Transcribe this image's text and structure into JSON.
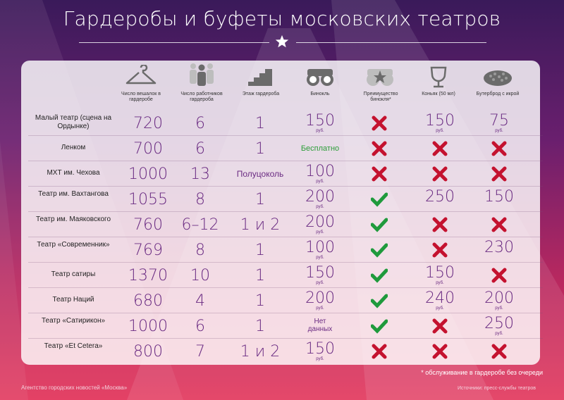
{
  "title": "Гардеробы и буфеты московских театров",
  "columns": [
    {
      "label": "Число вешалок в гардеробе",
      "icon": "hanger-icon"
    },
    {
      "label": "Число работников гардероба",
      "icon": "workers-icon"
    },
    {
      "label": "Этаж гардероба",
      "icon": "stairs-icon"
    },
    {
      "label": "Бинокль",
      "icon": "binoculars-icon"
    },
    {
      "label": "Преимущество бинокля*",
      "icon": "binoculars-star-icon"
    },
    {
      "label": "Коньяк (50 мл)",
      "icon": "glass-icon"
    },
    {
      "label": "Бутерброд с икрой",
      "icon": "sandwich-icon"
    }
  ],
  "rub": "руб.",
  "rows": [
    {
      "theatre": "Малый театр (сцена на Ордынке)",
      "hangers": "720",
      "workers": "6",
      "floor": "1",
      "binocular": "150",
      "binocular_type": "price",
      "advantage": "no",
      "cognac": "150",
      "cognac_type": "price",
      "sandwich": "75",
      "sandwich_type": "price"
    },
    {
      "theatre": "Ленком",
      "hangers": "700",
      "workers": "6",
      "floor": "1",
      "binocular": "Бесплатно",
      "binocular_type": "free",
      "advantage": "no",
      "cognac": "",
      "cognac_type": "no",
      "sandwich": "",
      "sandwich_type": "no"
    },
    {
      "theatre": "МХТ им. Чехова",
      "hangers": "1000",
      "workers": "13",
      "floor": "Полуцоколь",
      "binocular": "100",
      "binocular_type": "price",
      "advantage": "no",
      "cognac": "",
      "cognac_type": "no",
      "sandwich": "",
      "sandwich_type": "no"
    },
    {
      "theatre": "Театр им. Вахтангова",
      "hangers": "1055",
      "workers": "8",
      "floor": "1",
      "binocular": "200",
      "binocular_type": "price",
      "advantage": "yes",
      "cognac": "250",
      "cognac_type": "plain",
      "sandwich": "150",
      "sandwich_type": "plain"
    },
    {
      "theatre": "Театр им. Маяковского",
      "hangers": "760",
      "workers": "6–12",
      "floor": "1 и 2",
      "binocular": "200",
      "binocular_type": "price",
      "advantage": "yes",
      "cognac": "",
      "cognac_type": "no",
      "sandwich": "",
      "sandwich_type": "no"
    },
    {
      "theatre": "Театр «Современник»",
      "hangers": "769",
      "workers": "8",
      "floor": "1",
      "binocular": "100",
      "binocular_type": "price",
      "advantage": "yes",
      "cognac": "",
      "cognac_type": "no",
      "sandwich": "230",
      "sandwich_type": "plain"
    },
    {
      "theatre": "Театр сатиры",
      "hangers": "1370",
      "workers": "10",
      "floor": "1",
      "binocular": "150",
      "binocular_type": "price",
      "advantage": "yes",
      "cognac": "150",
      "cognac_type": "price",
      "sandwich": "",
      "sandwich_type": "no"
    },
    {
      "theatre": "Театр Наций",
      "hangers": "680",
      "workers": "4",
      "floor": "1",
      "binocular": "200",
      "binocular_type": "price",
      "advantage": "yes",
      "cognac": "240",
      "cognac_type": "price",
      "sandwich": "200",
      "sandwich_type": "price"
    },
    {
      "theatre": "Театр «Сатирикон»",
      "hangers": "1000",
      "workers": "6",
      "floor": "1",
      "binocular": "Нет данных",
      "binocular_type": "nodata",
      "advantage": "yes",
      "cognac": "",
      "cognac_type": "no",
      "sandwich": "250",
      "sandwich_type": "price"
    },
    {
      "theatre": "Театр «Et Cetera»",
      "hangers": "800",
      "workers": "7",
      "floor": "1 и 2",
      "binocular": "150",
      "binocular_type": "price",
      "advantage": "no",
      "cognac": "",
      "cognac_type": "no",
      "sandwich": "",
      "sandwich_type": "no"
    }
  ],
  "footnote": "* обслуживание в гардеробе без очереди",
  "agency": "Агентство городских новостей «Москва»",
  "sources": "Источники: пресс-службы театров",
  "colors": {
    "value": "#6a2b82",
    "yes": "#1f9a3c",
    "no": "#c4122f",
    "free": "#2e9e3a"
  }
}
